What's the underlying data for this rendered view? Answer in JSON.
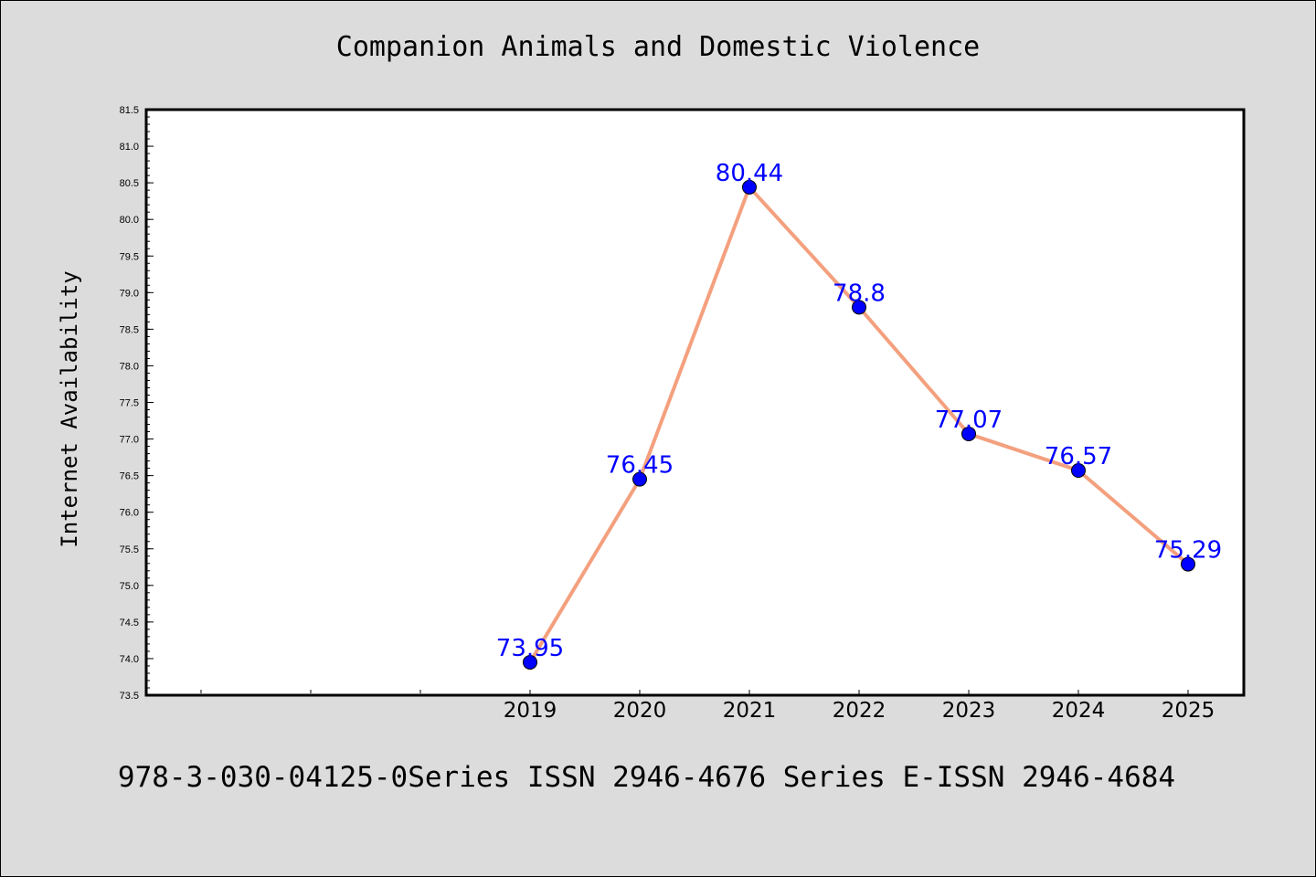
{
  "chart_data": {
    "type": "line",
    "title": "Companion Animals and Domestic Violence",
    "xlabel": "",
    "ylabel": "Internet Availability",
    "categories": [
      "2019",
      "2020",
      "2021",
      "2022",
      "2023",
      "2024",
      "2025"
    ],
    "values": [
      73.95,
      76.45,
      80.44,
      78.8,
      77.07,
      76.57,
      75.29
    ],
    "data_labels": [
      "73.95",
      "76.45",
      "80.44",
      "78.8",
      "77.07",
      "76.57",
      "75.29"
    ],
    "ylim": [
      73.5,
      81.5
    ],
    "yticks": [
      "73.5",
      "74.0",
      "74.5",
      "75.0",
      "75.5",
      "76.0",
      "76.5",
      "77.0",
      "77.5",
      "78.0",
      "78.5",
      "79.0",
      "79.5",
      "80.0",
      "80.5",
      "81.0",
      "81.5"
    ],
    "grid": false,
    "legend": "none",
    "colors": {
      "line": "#f4a07e",
      "marker": "#0000ff",
      "data_label": "#0000ff",
      "plot_background": "#ffffff",
      "page_background": "#dcdcdc"
    }
  },
  "footer": "978-3-030-04125-0Series ISSN 2946-4676 Series E-ISSN 2946-4684"
}
